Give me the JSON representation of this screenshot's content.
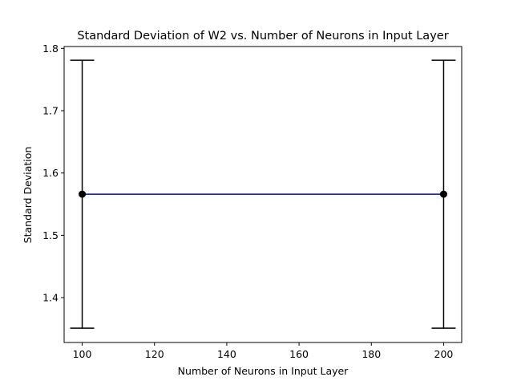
{
  "chart_data": {
    "type": "line",
    "title": "Standard Deviation of W2 vs. Number of Neurons in Input Layer",
    "xlabel": "Number of Neurons in Input Layer",
    "ylabel": "Standard Deviation",
    "xlim": [
      95,
      205
    ],
    "ylim": [
      1.328,
      1.803
    ],
    "x_ticks": [
      100,
      120,
      140,
      160,
      180,
      200
    ],
    "y_ticks": [
      1.4,
      1.5,
      1.6,
      1.7,
      1.8
    ],
    "grid": false,
    "series": [
      {
        "x": [
          100,
          200
        ],
        "y": [
          1.566,
          1.566
        ],
        "yerr": [
          0.215,
          0.215
        ],
        "line_color": "#0000cd",
        "marker_color": "#000000",
        "errorbar_color": "#000000"
      }
    ]
  }
}
